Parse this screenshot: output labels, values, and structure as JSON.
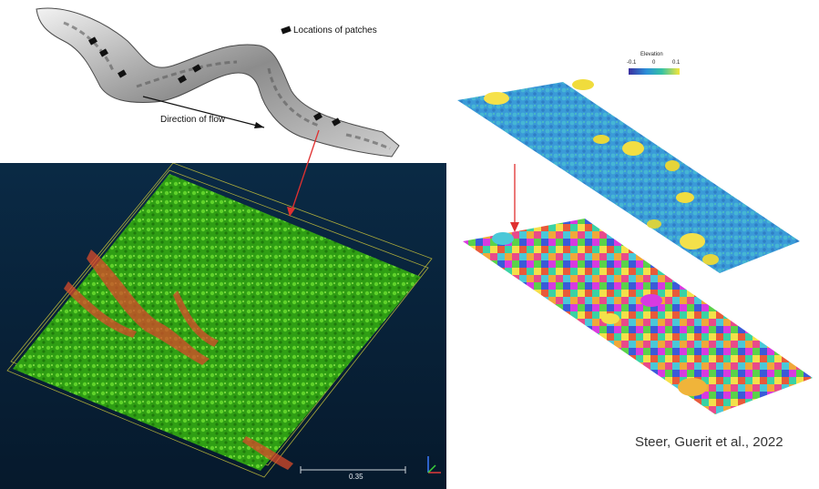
{
  "map": {
    "legend_label": "Locations of patches",
    "flow_label": "Direction of flow"
  },
  "colorbar": {
    "title": "Elevation",
    "ticks": [
      "-0.1",
      "0",
      "0.1"
    ]
  },
  "pointcloud": {
    "scale_value": "0.35"
  },
  "citation": "Steer, Guerit et al., 2022",
  "colors": {
    "arrow_red": "#e03030",
    "cloud_green": "#44c21c",
    "cloud_red": "#d94b2a",
    "viewer_bg_top": "#0a2a45",
    "viewer_bg_bottom": "#06192c",
    "colorbar_low": "#3b2fa0",
    "colorbar_high": "#f6e63a"
  }
}
